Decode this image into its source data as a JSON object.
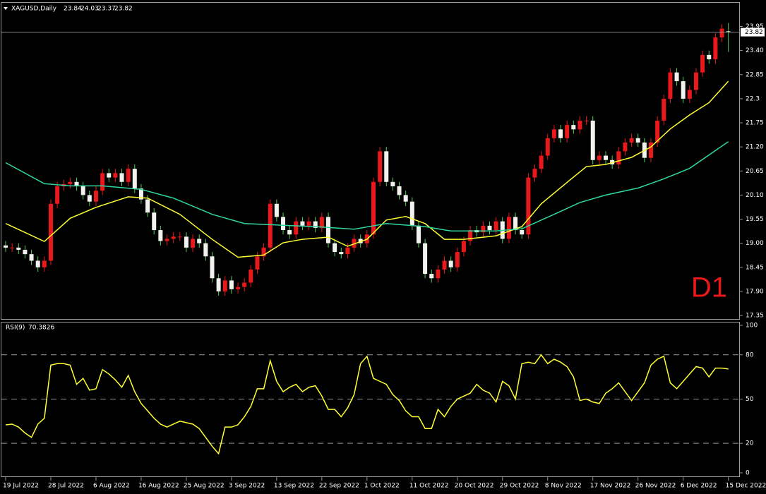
{
  "chart_data": [
    {
      "type": "candlestick",
      "title": "XAGUSD,Daily",
      "xticks": [
        {
          "value": 0,
          "label": "19 Jul 2022"
        },
        {
          "value": 7,
          "label": "28 Jul 2022"
        },
        {
          "value": 14,
          "label": "6 Aug 2022"
        },
        {
          "value": 21,
          "label": "16 Aug 2022"
        },
        {
          "value": 28,
          "label": "25 Aug 2022"
        },
        {
          "value": 35,
          "label": "3 Sep 2022"
        },
        {
          "value": 42,
          "label": "13 Sep 2022"
        },
        {
          "value": 49,
          "label": "22 Sep 2022"
        },
        {
          "value": 56,
          "label": "1 Oct 2022"
        },
        {
          "value": 63,
          "label": "11 Oct 2022"
        },
        {
          "value": 70,
          "label": "20 Oct 2022"
        },
        {
          "value": 77,
          "label": "29 Oct 2022"
        },
        {
          "value": 84,
          "label": "8 Nov 2022"
        },
        {
          "value": 91,
          "label": "17 Nov 2022"
        },
        {
          "value": 98,
          "label": "26 Nov 2022"
        },
        {
          "value": 105,
          "label": "6 Dec 2022"
        },
        {
          "value": 112,
          "label": "15 Dec 2022"
        }
      ],
      "open": [
        18.95,
        18.9,
        18.9,
        18.85,
        18.75,
        18.6,
        18.45,
        18.6,
        19.9,
        20.3,
        20.35,
        20.4,
        20.3,
        20.1,
        19.95,
        20.2,
        20.6,
        20.5,
        20.6,
        20.4,
        20.7,
        20.25,
        20.0,
        19.7,
        19.3,
        19.05,
        19.1,
        19.15,
        19.15,
        18.9,
        19.1,
        19.0,
        18.7,
        18.2,
        17.9,
        18.15,
        17.95,
        18.0,
        18.1,
        18.4,
        18.7,
        18.9,
        19.9,
        19.6,
        19.3,
        19.2,
        19.5,
        19.4,
        19.5,
        19.35,
        19.6,
        19.0,
        18.8,
        18.75,
        18.9,
        19.1,
        19.0,
        19.2,
        20.4,
        21.1,
        20.4,
        20.3,
        20.1,
        19.95,
        19.4,
        19.0,
        18.3,
        18.2,
        18.4,
        18.6,
        18.45,
        18.8,
        19.05,
        19.3,
        19.25,
        19.4,
        19.3,
        19.5,
        19.1,
        19.6,
        19.3,
        19.2,
        20.5,
        20.7,
        21.0,
        21.4,
        21.6,
        21.4,
        21.7,
        21.6,
        21.8,
        21.8,
        20.9,
        21.0,
        20.9,
        20.8,
        21.1,
        21.3,
        21.4,
        21.3,
        20.95,
        21.3,
        21.8,
        22.3,
        22.9,
        22.7,
        22.3,
        22.5,
        22.9,
        23.3,
        23.2,
        23.7,
        23.84
      ],
      "high": [
        19.05,
        19.0,
        19.0,
        18.95,
        18.85,
        18.7,
        18.7,
        20.0,
        20.4,
        20.45,
        20.5,
        20.5,
        20.4,
        20.2,
        20.3,
        20.7,
        20.7,
        20.7,
        20.7,
        20.8,
        20.8,
        20.35,
        20.1,
        19.8,
        19.4,
        19.2,
        19.25,
        19.25,
        19.25,
        19.2,
        19.2,
        19.1,
        18.8,
        18.3,
        18.25,
        18.25,
        18.1,
        18.2,
        18.5,
        18.8,
        19.0,
        20.0,
        20.0,
        19.7,
        19.4,
        19.6,
        19.6,
        19.6,
        19.6,
        19.7,
        19.7,
        19.1,
        18.9,
        19.0,
        19.2,
        19.2,
        19.3,
        20.5,
        21.2,
        21.2,
        20.5,
        20.4,
        20.2,
        20.05,
        19.5,
        19.1,
        18.4,
        18.5,
        18.7,
        18.7,
        18.9,
        19.15,
        19.4,
        19.4,
        19.5,
        19.5,
        19.6,
        19.6,
        19.7,
        19.7,
        19.4,
        20.6,
        20.8,
        21.1,
        21.5,
        21.7,
        21.7,
        21.8,
        21.8,
        21.9,
        21.9,
        21.9,
        21.1,
        21.1,
        21.0,
        21.2,
        21.4,
        21.5,
        21.5,
        21.4,
        21.4,
        21.9,
        22.4,
        23.0,
        23.0,
        22.8,
        22.6,
        23.0,
        23.4,
        23.4,
        23.8,
        24.0,
        24.03
      ],
      "low": [
        18.8,
        18.8,
        18.75,
        18.65,
        18.5,
        18.35,
        18.35,
        18.5,
        19.8,
        20.2,
        20.25,
        20.2,
        20.0,
        19.85,
        19.85,
        20.1,
        20.4,
        20.4,
        20.3,
        20.3,
        20.15,
        19.9,
        19.6,
        19.2,
        18.95,
        18.95,
        19.0,
        19.05,
        18.8,
        18.8,
        18.9,
        18.6,
        18.1,
        17.8,
        17.8,
        17.85,
        17.85,
        17.9,
        18.0,
        18.3,
        18.6,
        18.8,
        19.5,
        19.2,
        19.1,
        19.1,
        19.3,
        19.3,
        19.25,
        19.25,
        18.9,
        18.7,
        18.65,
        18.65,
        18.8,
        18.9,
        18.9,
        19.1,
        20.3,
        20.3,
        20.2,
        20.0,
        19.85,
        19.3,
        18.9,
        18.2,
        18.1,
        18.1,
        18.3,
        18.35,
        18.35,
        18.7,
        18.95,
        19.15,
        19.15,
        19.2,
        19.2,
        19.0,
        19.0,
        19.2,
        19.1,
        19.1,
        20.4,
        20.6,
        20.9,
        21.3,
        21.3,
        21.3,
        21.5,
        21.5,
        21.7,
        20.8,
        20.8,
        20.8,
        20.7,
        20.7,
        21.0,
        21.2,
        21.2,
        20.85,
        20.85,
        21.2,
        21.7,
        22.2,
        22.6,
        22.2,
        22.2,
        22.4,
        22.8,
        23.1,
        23.1,
        23.6,
        23.37
      ],
      "close": [
        18.9,
        18.9,
        18.85,
        18.75,
        18.6,
        18.45,
        18.6,
        19.9,
        20.3,
        20.35,
        20.4,
        20.3,
        20.1,
        19.95,
        20.2,
        20.6,
        20.5,
        20.6,
        20.4,
        20.7,
        20.25,
        20.0,
        19.7,
        19.3,
        19.05,
        19.1,
        19.15,
        19.15,
        18.9,
        19.1,
        19.0,
        18.7,
        18.2,
        17.9,
        18.15,
        17.95,
        18.0,
        18.1,
        18.4,
        18.7,
        18.9,
        19.9,
        19.6,
        19.3,
        19.2,
        19.5,
        19.4,
        19.5,
        19.35,
        19.6,
        19.0,
        18.8,
        18.75,
        18.9,
        19.1,
        19.0,
        19.2,
        20.4,
        21.1,
        20.4,
        20.3,
        20.1,
        19.95,
        19.4,
        19.0,
        18.3,
        18.2,
        18.4,
        18.6,
        18.45,
        18.8,
        19.05,
        19.3,
        19.25,
        19.4,
        19.3,
        19.5,
        19.1,
        19.6,
        19.3,
        19.2,
        20.5,
        20.7,
        21.0,
        21.4,
        21.6,
        21.4,
        21.7,
        21.6,
        21.8,
        21.8,
        20.9,
        21.0,
        20.9,
        20.8,
        21.1,
        21.3,
        21.4,
        21.3,
        20.95,
        21.3,
        21.8,
        22.3,
        22.9,
        22.7,
        22.3,
        22.5,
        22.9,
        23.3,
        23.2,
        23.7,
        23.9,
        23.82
      ],
      "up_color": "#e8181b",
      "down_color": "#f2f2ee",
      "wick_color_down": "#4fd05a",
      "series": [
        {
          "color": "#ffff33",
          "x": [
            0,
            6,
            10,
            14,
            19,
            22,
            27,
            32,
            36,
            40,
            43,
            46,
            50,
            53,
            56,
            59,
            62,
            65,
            68,
            71,
            76,
            80,
            83,
            87,
            90,
            93,
            97,
            100,
            103,
            106,
            109,
            112
          ],
          "values": [
            19.45,
            19.04,
            19.57,
            19.82,
            20.06,
            20.03,
            19.66,
            19.09,
            18.68,
            18.73,
            19.01,
            19.09,
            19.14,
            18.93,
            19.09,
            19.53,
            19.61,
            19.45,
            19.09,
            19.09,
            19.17,
            19.38,
            19.9,
            20.39,
            20.75,
            20.8,
            20.96,
            21.2,
            21.61,
            21.93,
            22.21,
            22.7
          ]
        },
        {
          "color": "#2ed8a0",
          "x": [
            0,
            6,
            10,
            15,
            21,
            26,
            32,
            37,
            43,
            48,
            54,
            59,
            65,
            69,
            76,
            80,
            85,
            89,
            93,
            98,
            102,
            106,
            112
          ],
          "values": [
            20.84,
            20.36,
            20.31,
            20.31,
            20.23,
            20.03,
            19.66,
            19.45,
            19.41,
            19.38,
            19.32,
            19.45,
            19.38,
            19.28,
            19.28,
            19.33,
            19.66,
            19.93,
            20.1,
            20.26,
            20.47,
            20.71,
            21.32
          ]
        }
      ],
      "annotation": "D1",
      "ylim": [
        17.27,
        24.49
      ],
      "yticks": [
        17.35,
        {
          "value": 17.9,
          "label": "17.90"
        },
        18.45,
        {
          "value": 19.0,
          "label": "19.00"
        },
        19.55,
        {
          "value": 20.1,
          "label": "20.10"
        },
        20.65,
        {
          "value": 21.2,
          "label": "21.20"
        },
        21.75,
        22.3,
        22.85,
        {
          "value": 23.4,
          "label": "23.40"
        },
        23.95
      ]
    },
    {
      "type": "line",
      "title": "RSI(9)",
      "color": "#ffff33",
      "values": [
        32.5,
        33,
        31,
        27,
        24,
        33,
        37,
        73,
        74,
        74,
        73,
        60,
        64,
        56,
        57,
        70,
        67,
        63,
        58,
        66,
        55,
        47,
        42,
        37,
        33,
        31,
        33,
        35,
        34,
        33,
        30,
        24,
        18,
        13,
        31,
        31,
        32.5,
        38,
        45,
        57,
        57,
        76,
        62,
        55,
        58,
        60,
        55,
        58,
        59,
        52,
        43,
        43,
        38,
        44,
        53,
        74,
        79,
        64,
        62,
        60,
        53,
        49,
        42,
        38,
        38,
        30,
        30,
        43,
        38,
        45,
        50,
        52,
        54,
        60,
        56,
        54,
        48,
        62,
        59,
        50,
        74,
        75,
        74,
        80,
        74,
        77,
        75,
        72,
        65,
        49,
        50,
        48,
        47,
        54,
        57,
        61,
        55,
        49,
        55,
        61,
        73,
        77,
        79,
        61,
        57,
        62,
        67,
        72,
        71,
        65,
        71,
        71,
        70.3826
      ],
      "ylim": [
        -2.9,
        101.9
      ],
      "yticks": [
        0,
        20,
        50,
        80,
        100
      ],
      "levels": [
        20,
        50,
        80
      ]
    }
  ]
}
